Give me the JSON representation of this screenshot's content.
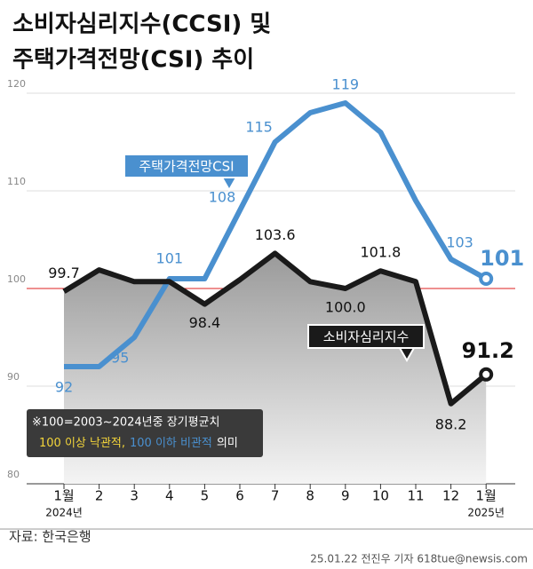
{
  "chart_data": {
    "type": "line",
    "title_lines": [
      "소비자심리지수(CCSI) 및",
      "주택가격전망(CSI) 추이"
    ],
    "categories": [
      "1월",
      "2",
      "3",
      "4",
      "5",
      "6",
      "7",
      "8",
      "9",
      "10",
      "11",
      "12",
      "1월"
    ],
    "year_labels": [
      "2024년",
      null,
      null,
      null,
      null,
      null,
      null,
      null,
      null,
      null,
      null,
      null,
      "2025년"
    ],
    "series": [
      {
        "name": "주택가격전망CSI",
        "color": "#4a90cf",
        "values": [
          92,
          92,
          95,
          101,
          101,
          108,
          115,
          118,
          119,
          116,
          109,
          103,
          101
        ],
        "value_labels": [
          "92",
          null,
          "95",
          "101",
          null,
          "108",
          "115",
          null,
          "119",
          null,
          null,
          "103",
          "101"
        ]
      },
      {
        "name": "소비자심리지수",
        "color": "#1a1a1a",
        "values": [
          99.7,
          101.9,
          100.7,
          100.7,
          98.4,
          100.9,
          103.6,
          100.7,
          100.0,
          101.8,
          100.7,
          88.2,
          91.2
        ],
        "value_labels": [
          "99.7",
          null,
          null,
          null,
          "98.4",
          null,
          "103.6",
          null,
          "100.0",
          "101.8",
          null,
          "88.2",
          "91.2"
        ]
      }
    ],
    "ylim": [
      80,
      120
    ],
    "yticks": [
      80,
      90,
      100,
      110,
      120
    ],
    "reference_line": 100,
    "grid": true,
    "note_lines": [
      "※100=2003~2024년중 장기평균치"
    ],
    "note_parts": [
      {
        "text": "100 이상 낙관적,",
        "color": "#f2d43a"
      },
      {
        "text": "100 이하 비관적",
        "color": "#4a90cf"
      },
      {
        "text": "의미",
        "color": "#ffffff"
      }
    ],
    "source": "자료: 한국은행",
    "credit": "25.01.22 전진우 기자 618tue@newsis.com"
  }
}
